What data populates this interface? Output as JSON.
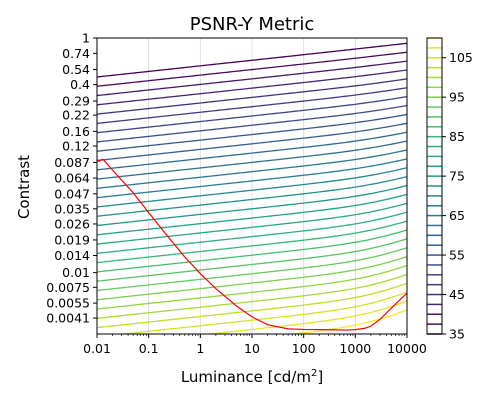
{
  "chart_data": {
    "type": "contour",
    "title": "PSNR-Y Metric",
    "xlabel": "Luminance [cd/m²]",
    "ylabel": "Contrast",
    "x_scale": "log",
    "y_scale": "log",
    "xlim": [
      0.01,
      10000
    ],
    "ylim": [
      0.003,
      1
    ],
    "x_tick_labels": [
      "0.01",
      "0.1",
      "1",
      "10",
      "100",
      "1000",
      "10000"
    ],
    "x_tick_values": [
      0.01,
      0.1,
      1,
      10,
      100,
      1000,
      10000
    ],
    "y_tick_labels": [
      "1",
      "0.74",
      "0.54",
      "0.4",
      "0.29",
      "0.22",
      "0.16",
      "0.12",
      "0.087",
      "0.064",
      "0.047",
      "0.035",
      "0.026",
      "0.019",
      "0.014",
      "0.01",
      "0.0075",
      "0.0055",
      "0.0041"
    ],
    "y_tick_values": [
      1,
      0.74,
      0.54,
      0.4,
      0.29,
      0.22,
      0.16,
      0.12,
      0.087,
      0.064,
      0.047,
      0.035,
      0.026,
      0.019,
      0.014,
      0.01,
      0.0075,
      0.0055,
      0.0041
    ],
    "colorbar": {
      "colormap": "viridis",
      "range": [
        35,
        110
      ],
      "level_step": 2.5,
      "tick_labels": [
        "35",
        "45",
        "55",
        "65",
        "75",
        "85",
        "95",
        "105"
      ],
      "tick_values": [
        35,
        45,
        55,
        65,
        75,
        85,
        95,
        105
      ]
    },
    "contour_levels": [
      35,
      37.5,
      40,
      42.5,
      45,
      47.5,
      50,
      52.5,
      55,
      57.5,
      60,
      62.5,
      65,
      67.5,
      70,
      72.5,
      75,
      77.5,
      80,
      82.5,
      85,
      87.5,
      90,
      92.5,
      95,
      97.5,
      100,
      102.5,
      105,
      107.5,
      110
    ],
    "red_curve": {
      "color": "#ff0000",
      "points": [
        [
          0.01,
          0.0921
        ],
        [
          0.011,
          0.0886
        ],
        [
          0.012,
          0.0918
        ],
        [
          0.0132,
          0.0921
        ],
        [
          0.02,
          0.0748
        ],
        [
          0.05,
          0.048
        ],
        [
          0.1,
          0.0325
        ],
        [
          0.2,
          0.0222
        ],
        [
          0.5,
          0.0136
        ],
        [
          1,
          0.0098
        ],
        [
          2,
          0.0073
        ],
        [
          5,
          0.0052
        ],
        [
          10,
          0.0042
        ],
        [
          20,
          0.0036
        ],
        [
          50,
          0.00332
        ],
        [
          100,
          0.00328
        ],
        [
          300,
          0.00326
        ],
        [
          700,
          0.00324
        ],
        [
          1000,
          0.00327
        ],
        [
          1500,
          0.00335
        ],
        [
          2000,
          0.0035
        ],
        [
          3000,
          0.004
        ],
        [
          5000,
          0.005
        ],
        [
          10000,
          0.0067
        ]
      ]
    },
    "grid": true,
    "legend": "none"
  }
}
